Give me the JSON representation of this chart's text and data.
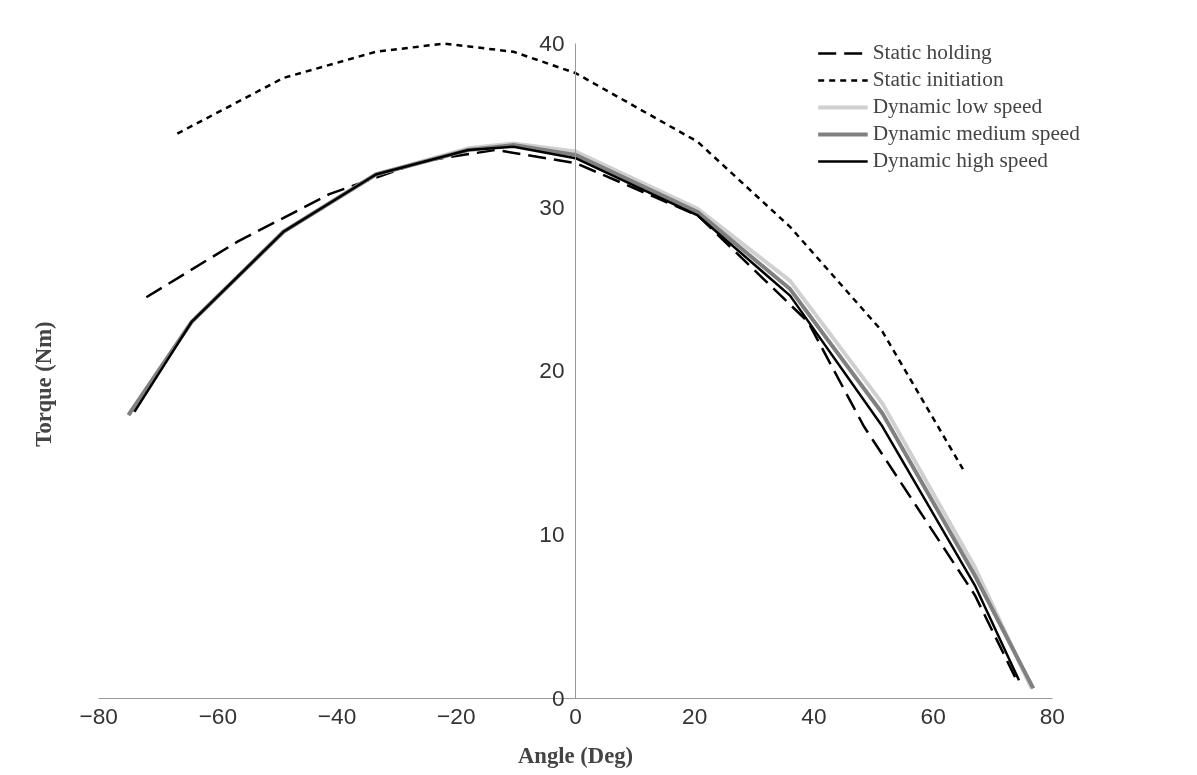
{
  "chart_data": {
    "type": "line",
    "xlabel": "Angle (Deg)",
    "ylabel": "Torque (Nm)",
    "xlim": [
      -80,
      80
    ],
    "xticks": [
      -80,
      -60,
      -40,
      -20,
      0,
      20,
      40,
      60,
      80
    ],
    "ylim": [
      0,
      40
    ],
    "yticks": [
      0,
      10,
      20,
      30,
      40
    ],
    "grid": false,
    "legend": "top right",
    "marker": "none",
    "series": [
      {
        "name": "Static holding",
        "color": "#000000",
        "line_style": "dashed",
        "x": [
          -72,
          -56.7,
          -41.3,
          -25.8,
          -13.4,
          0,
          20.5,
          39,
          48.4,
          67,
          74
        ],
        "values": [
          24.5,
          27.9,
          30.8,
          32.8,
          33.5,
          32.7,
          29.5,
          23,
          16.6,
          6.3,
          1.1
        ]
      },
      {
        "name": "Static initiation",
        "color": "#000000",
        "line_style": "dotted",
        "x": [
          -66.8,
          -49,
          -33.5,
          -22,
          -10.4,
          0,
          20.5,
          36,
          51.5,
          65
        ],
        "values": [
          34.5,
          37.9,
          39.5,
          40,
          39.5,
          38.2,
          34,
          28.8,
          22.4,
          14
        ]
      },
      {
        "name": "Dynamic low speed",
        "color": "#d0d0d0",
        "line_style": "solid",
        "x": [
          -75,
          -64.4,
          -49,
          -33.5,
          -18,
          -10.4,
          0,
          20.5,
          36,
          51.5,
          67,
          76.5
        ],
        "values": [
          17.3,
          23,
          28.5,
          32,
          33.6,
          33.9,
          33.4,
          29.9,
          25.5,
          18,
          8,
          0.6
        ]
      },
      {
        "name": "Dynamic medium speed",
        "color": "#808080",
        "line_style": "solid",
        "x": [
          -75,
          -64.4,
          -49,
          -33.5,
          -18,
          -10.4,
          0,
          20.5,
          36,
          51.5,
          67,
          76.8
        ],
        "values": [
          17.3,
          23,
          28.5,
          32,
          33.5,
          33.8,
          33.2,
          29.7,
          25,
          17.4,
          7.5,
          0.6
        ]
      },
      {
        "name": "Dynamic high speed",
        "color": "#000000",
        "line_style": "solid",
        "x": [
          -74,
          -64.4,
          -49,
          -33.5,
          -18,
          -10.4,
          0,
          20.5,
          36,
          51.5,
          67,
          74.4
        ],
        "values": [
          17.5,
          23,
          28.5,
          32,
          33.5,
          33.7,
          33,
          29.5,
          24.6,
          16.6,
          6.9,
          1.1
        ]
      }
    ]
  }
}
